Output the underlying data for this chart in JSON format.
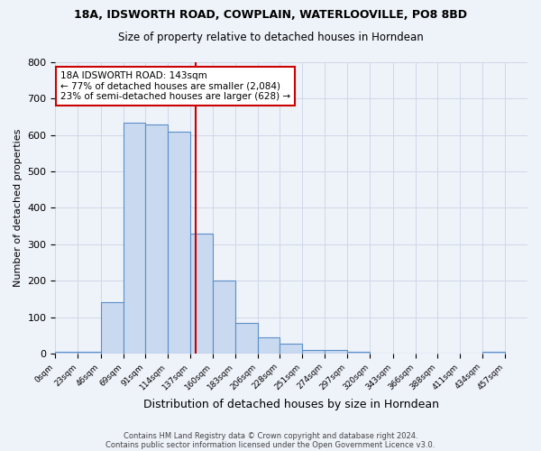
{
  "title1": "18A, IDSWORTH ROAD, COWPLAIN, WATERLOOVILLE, PO8 8BD",
  "title2": "Size of property relative to detached houses in Horndean",
  "xlabel": "Distribution of detached houses by size in Horndean",
  "ylabel": "Number of detached properties",
  "footnote1": "Contains HM Land Registry data © Crown copyright and database right 2024.",
  "footnote2": "Contains public sector information licensed under the Open Government Licence v3.0.",
  "bin_edges": [
    0,
    23,
    46,
    69,
    91,
    114,
    137,
    160,
    183,
    206,
    228,
    251,
    274,
    297,
    320,
    343,
    366,
    388,
    411,
    434,
    457
  ],
  "bar_heights": [
    5,
    5,
    140,
    635,
    630,
    610,
    330,
    200,
    85,
    45,
    28,
    10,
    10,
    5,
    0,
    0,
    0,
    0,
    0,
    5
  ],
  "bar_face_color": "#c9d9f0",
  "bar_edge_color": "#5b8fc9",
  "grid_color": "#d0d8e8",
  "background_color": "#eef2f9",
  "vline_x": 143,
  "vline_color": "#cc0000",
  "annotation_text": "18A IDSWORTH ROAD: 143sqm\n← 77% of detached houses are smaller (2,084)\n23% of semi-detached houses are larger (628) →",
  "annotation_box_color": "#ffffff",
  "annotation_box_edge": "#cc0000",
  "ylim": [
    0,
    800
  ],
  "yticks": [
    0,
    100,
    200,
    300,
    400,
    500,
    600,
    700,
    800
  ],
  "tick_labels": [
    "0sqm",
    "23sqm",
    "46sqm",
    "69sqm",
    "91sqm",
    "114sqm",
    "137sqm",
    "160sqm",
    "183sqm",
    "206sqm",
    "228sqm",
    "251sqm",
    "274sqm",
    "297sqm",
    "320sqm",
    "343sqm",
    "366sqm",
    "388sqm",
    "411sqm",
    "434sqm",
    "457sqm"
  ]
}
